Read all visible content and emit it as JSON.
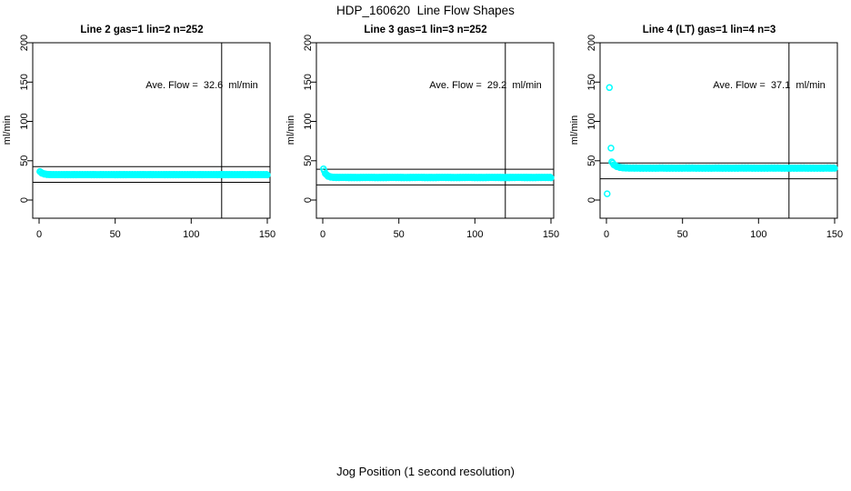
{
  "figure": {
    "title": "HDP_160620  Line Flow Shapes",
    "xlabel": "Jog Position (1 second resolution)"
  },
  "colors": {
    "points": "#00ffff",
    "axis": "#000000",
    "background": "#ffffff"
  },
  "chart_data": [
    {
      "type": "scatter",
      "title": "Line 2 gas=1 lin=2 n=252",
      "annotation": "Ave. Flow =  32.6  ml/min",
      "ave_flow": 32.6,
      "n": 252,
      "ylabel": "ml/min",
      "xlim": [
        0,
        150
      ],
      "ylim": [
        0,
        200
      ],
      "x_ticks": [
        0,
        50,
        100,
        150
      ],
      "y_ticks": [
        0,
        50,
        100,
        150,
        200
      ],
      "ref_lines_h": [
        42.6,
        22.6
      ],
      "ref_line_v": 120,
      "band": {
        "x_start": 0.5,
        "x_end": 150,
        "count": 252,
        "y_level": 32.3,
        "y_start_offset": 4,
        "decay_tau": 2.0,
        "jitter": 0.4
      },
      "outliers": []
    },
    {
      "type": "scatter",
      "title": "Line 3 gas=1 lin=3 n=252",
      "annotation": "Ave. Flow =  29.2  ml/min",
      "ave_flow": 29.2,
      "n": 252,
      "ylabel": "ml/min",
      "xlim": [
        0,
        150
      ],
      "ylim": [
        0,
        200
      ],
      "x_ticks": [
        0,
        50,
        100,
        150
      ],
      "y_ticks": [
        0,
        50,
        100,
        150,
        200
      ],
      "ref_lines_h": [
        39.2,
        19.2
      ],
      "ref_line_v": 120,
      "band": {
        "x_start": 0.5,
        "x_end": 150,
        "count": 252,
        "y_level": 28.7,
        "y_start_offset": 11,
        "decay_tau": 1.7,
        "jitter": 0.5
      },
      "outliers": []
    },
    {
      "type": "scatter",
      "title": "Line 4 (LT) gas=1 lin=4 n=3",
      "annotation": "Ave. Flow =  37.1  ml/min",
      "ave_flow": 37.1,
      "n": 3,
      "ylabel": "ml/min",
      "xlim": [
        0,
        150
      ],
      "ylim": [
        0,
        200
      ],
      "x_ticks": [
        0,
        50,
        100,
        150
      ],
      "y_ticks": [
        0,
        50,
        100,
        150,
        200
      ],
      "ref_lines_h": [
        47.1,
        27.1
      ],
      "ref_line_v": 120,
      "band": {
        "x_start": 3.5,
        "x_end": 150,
        "count": 220,
        "y_level": 40.6,
        "y_start_offset": 8,
        "decay_tau": 2.5,
        "jitter": 0.4
      },
      "outliers": [
        [
          2,
          143
        ],
        [
          3,
          66
        ],
        [
          0.5,
          8
        ]
      ]
    }
  ]
}
